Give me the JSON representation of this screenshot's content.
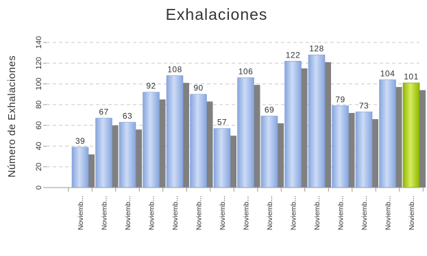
{
  "chart_data": {
    "type": "bar",
    "title": "Exhalaciones",
    "ylabel": "Número de Exhalaciones",
    "xlabel": "",
    "ylim": [
      0,
      140
    ],
    "yticks": [
      0,
      20,
      40,
      60,
      80,
      100,
      120,
      140
    ],
    "grid": true,
    "categories": [
      "Noviemb...",
      "Noviemb...",
      "Noviemb...",
      "Noviemb...",
      "Noviemb...",
      "Noviemb...",
      "Noviemb...",
      "Noviemb...",
      "Noviemb...",
      "Noviemb...",
      "Noviemb...",
      "Noviemb...",
      "Noviemb...",
      "Noviemb...",
      "Noviemb..."
    ],
    "series": [
      {
        "values": [
          39,
          67,
          63,
          92,
          108,
          90,
          57,
          106,
          69,
          122,
          128,
          79,
          73,
          104,
          101
        ]
      },
      {
        "values": [
          32,
          60,
          56,
          85,
          101,
          83,
          50,
          99,
          62,
          115,
          121,
          72,
          66,
          97,
          94
        ]
      }
    ],
    "highlight_index": 14,
    "colors": {
      "bar_light": "#cddcf6",
      "bar_dark": "#86a5de",
      "highlight_light": "#d8ec60",
      "highlight_dark": "#8cb800",
      "shadow": "#808080",
      "grid": "#c8c8c8",
      "text": "#333333"
    }
  }
}
